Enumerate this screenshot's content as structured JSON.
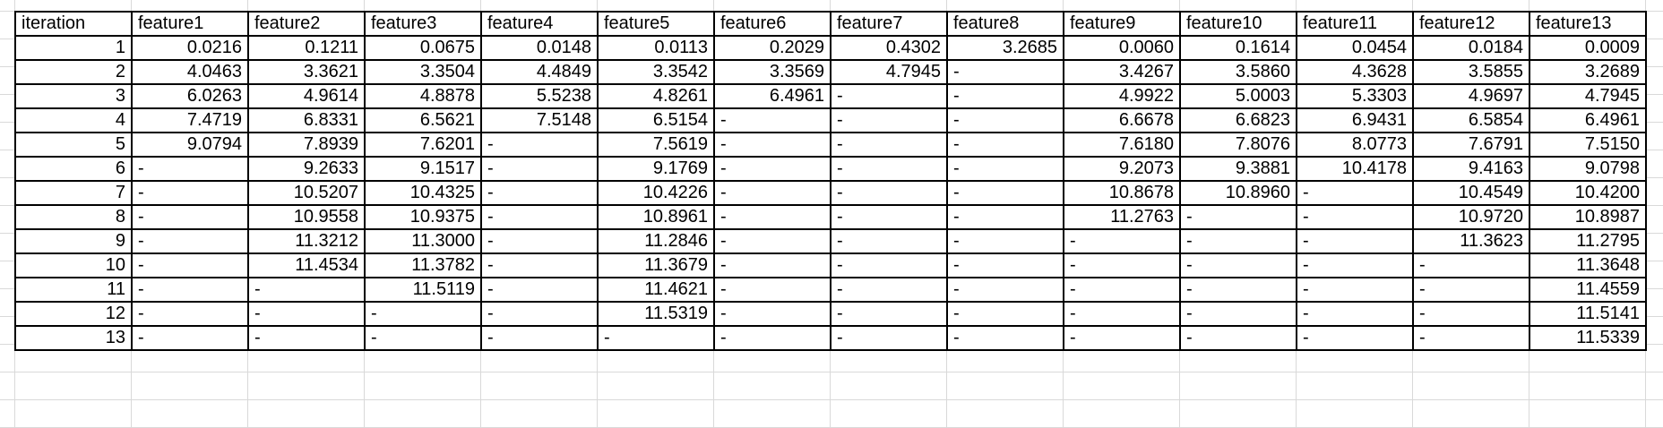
{
  "headers": [
    "iteration",
    "feature1",
    "feature2",
    "feature3",
    "feature4",
    "feature5",
    "feature6",
    "feature7",
    "feature8",
    "feature9",
    "feature10",
    "feature11",
    "feature12",
    "feature13"
  ],
  "rows": [
    [
      "1",
      "0.0216",
      "0.1211",
      "0.0675",
      "0.0148",
      "0.0113",
      "0.2029",
      "0.4302",
      "3.2685",
      "0.0060",
      "0.1614",
      "0.0454",
      "0.0184",
      "0.0009"
    ],
    [
      "2",
      "4.0463",
      "3.3621",
      "3.3504",
      "4.4849",
      "3.3542",
      "3.3569",
      "4.7945",
      "-",
      "3.4267",
      "3.5860",
      "4.3628",
      "3.5855",
      "3.2689"
    ],
    [
      "3",
      "6.0263",
      "4.9614",
      "4.8878",
      "5.5238",
      "4.8261",
      "6.4961",
      "-",
      "-",
      "4.9922",
      "5.0003",
      "5.3303",
      "4.9697",
      "4.7945"
    ],
    [
      "4",
      "7.4719",
      "6.8331",
      "6.5621",
      "7.5148",
      "6.5154",
      "-",
      "-",
      "-",
      "6.6678",
      "6.6823",
      "6.9431",
      "6.5854",
      "6.4961"
    ],
    [
      "5",
      "9.0794",
      "7.8939",
      "7.6201",
      "-",
      "7.5619",
      "-",
      "-",
      "-",
      "7.6180",
      "7.8076",
      "8.0773",
      "7.6791",
      "7.5150"
    ],
    [
      "6",
      "-",
      "9.2633",
      "9.1517",
      "-",
      "9.1769",
      "-",
      "-",
      "-",
      "9.2073",
      "9.3881",
      "10.4178",
      "9.4163",
      "9.0798"
    ],
    [
      "7",
      "-",
      "10.5207",
      "10.4325",
      "-",
      "10.4226",
      "-",
      "-",
      "-",
      "10.8678",
      "10.8960",
      "-",
      "10.4549",
      "10.4200"
    ],
    [
      "8",
      "-",
      "10.9558",
      "10.9375",
      "-",
      "10.8961",
      "-",
      "-",
      "-",
      "11.2763",
      "-",
      "-",
      "10.9720",
      "10.8987"
    ],
    [
      "9",
      "-",
      "11.3212",
      "11.3000",
      "-",
      "11.2846",
      "-",
      "-",
      "-",
      "-",
      "-",
      "-",
      "11.3623",
      "11.2795"
    ],
    [
      "10",
      "-",
      "11.4534",
      "11.3782",
      "-",
      "11.3679",
      "-",
      "-",
      "-",
      "-",
      "-",
      "-",
      "-",
      "11.3648"
    ],
    [
      "11",
      "-",
      "-",
      "11.5119",
      "-",
      "11.4621",
      "-",
      "-",
      "-",
      "-",
      "-",
      "-",
      "-",
      "11.4559"
    ],
    [
      "12",
      "-",
      "-",
      "-",
      "-",
      "11.5319",
      "-",
      "-",
      "-",
      "-",
      "-",
      "-",
      "-",
      "11.5141"
    ],
    [
      "13",
      "-",
      "-",
      "-",
      "-",
      "-",
      "-",
      "-",
      "-",
      "-",
      "-",
      "-",
      "-",
      "11.5339"
    ]
  ]
}
